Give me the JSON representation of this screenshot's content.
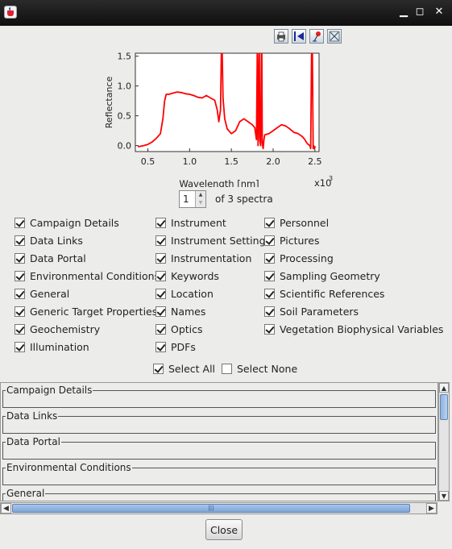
{
  "window": {
    "title": "",
    "controls": {
      "minimize": "▁",
      "maximize": "◻",
      "close": "✕"
    }
  },
  "toolbar": {
    "icons": [
      "print-icon",
      "export-icon",
      "pin-icon",
      "fit-icon"
    ]
  },
  "chart_data": {
    "type": "line",
    "title": "",
    "xlabel": "Wavelength [nm]",
    "ylabel": "Reflectance",
    "x_multiplier": "x10",
    "x_multiplier_exp": "3",
    "xlim": [
      0.35,
      2.55
    ],
    "ylim": [
      -0.1,
      1.55
    ],
    "xticks": [
      "0.5",
      "1.0",
      "1.5",
      "2.0",
      "2.5"
    ],
    "yticks": [
      "0.0",
      "0.5",
      "1.0",
      "1.5"
    ],
    "grid": false,
    "legend": "none",
    "color": "#ff0000",
    "series": [
      {
        "x": [
          0.38,
          0.45,
          0.5,
          0.55,
          0.6,
          0.65,
          0.68,
          0.7,
          0.72,
          0.75,
          0.8,
          0.85,
          0.9,
          0.95,
          1.0,
          1.05,
          1.1,
          1.15,
          1.2,
          1.25,
          1.3,
          1.33,
          1.35,
          1.37,
          1.38,
          1.38,
          1.39,
          1.4,
          1.42,
          1.45,
          1.5,
          1.55,
          1.6,
          1.65,
          1.7,
          1.75,
          1.78,
          1.8,
          1.81,
          1.81,
          1.82,
          1.83,
          1.835,
          1.84,
          1.85,
          1.86,
          1.865,
          1.87,
          1.875,
          1.88,
          1.89,
          1.9,
          1.95,
          2.0,
          2.05,
          2.1,
          2.15,
          2.2,
          2.25,
          2.3,
          2.35,
          2.38,
          2.4,
          2.42,
          2.44,
          2.45,
          2.46,
          2.47,
          2.48,
          2.485,
          2.49,
          2.5,
          2.51
        ],
        "y": [
          -0.02,
          0.0,
          0.02,
          0.06,
          0.12,
          0.2,
          0.45,
          0.75,
          0.86,
          0.86,
          0.88,
          0.9,
          0.89,
          0.87,
          0.86,
          0.84,
          0.81,
          0.8,
          0.84,
          0.8,
          0.76,
          0.6,
          0.4,
          0.6,
          1.55,
          1.55,
          1.55,
          0.8,
          0.45,
          0.28,
          0.2,
          0.25,
          0.4,
          0.45,
          0.4,
          0.35,
          0.3,
          0.1,
          1.55,
          1.55,
          0.0,
          1.55,
          1.55,
          0.1,
          0.0,
          1.55,
          1.55,
          0.05,
          0.0,
          -0.05,
          0.1,
          0.18,
          0.2,
          0.25,
          0.3,
          0.35,
          0.33,
          0.28,
          0.22,
          0.2,
          0.15,
          0.1,
          0.05,
          0.02,
          0.0,
          -0.05,
          1.55,
          1.55,
          -0.05,
          0.0,
          -0.05,
          -0.02,
          -0.03
        ]
      }
    ]
  },
  "pager": {
    "value": "1",
    "label": "of 3 spectra"
  },
  "categories": {
    "col1": [
      {
        "label": "Campaign Details",
        "checked": true
      },
      {
        "label": "Data Links",
        "checked": true
      },
      {
        "label": "Data Portal",
        "checked": true
      },
      {
        "label": "Environmental Conditions",
        "checked": true
      },
      {
        "label": "General",
        "checked": true
      },
      {
        "label": "Generic Target Properties",
        "checked": true
      },
      {
        "label": "Geochemistry",
        "checked": true
      },
      {
        "label": "Illumination",
        "checked": true
      }
    ],
    "col2": [
      {
        "label": "Instrument",
        "checked": true
      },
      {
        "label": "Instrument Settings",
        "checked": true
      },
      {
        "label": "Instrumentation",
        "checked": true
      },
      {
        "label": "Keywords",
        "checked": true
      },
      {
        "label": "Location",
        "checked": true
      },
      {
        "label": "Names",
        "checked": true
      },
      {
        "label": "Optics",
        "checked": true
      },
      {
        "label": "PDFs",
        "checked": true
      }
    ],
    "col3": [
      {
        "label": "Personnel",
        "checked": true
      },
      {
        "label": "Pictures",
        "checked": true
      },
      {
        "label": "Processing",
        "checked": true
      },
      {
        "label": "Sampling Geometry",
        "checked": true
      },
      {
        "label": "Scientific References",
        "checked": true
      },
      {
        "label": "Soil Parameters",
        "checked": true
      },
      {
        "label": "Vegetation Biophysical Variables",
        "checked": true
      }
    ]
  },
  "select": {
    "all": {
      "label": "Select All",
      "checked": true
    },
    "none": {
      "label": "Select None",
      "checked": false
    }
  },
  "groups": [
    "Campaign Details",
    "Data Links",
    "Data Portal",
    "Environmental Conditions",
    "General"
  ],
  "scroll": {
    "up": "▲",
    "down": "▼",
    "left": "◀",
    "right": "▶",
    "grip": "|||"
  },
  "close_label": "Close"
}
